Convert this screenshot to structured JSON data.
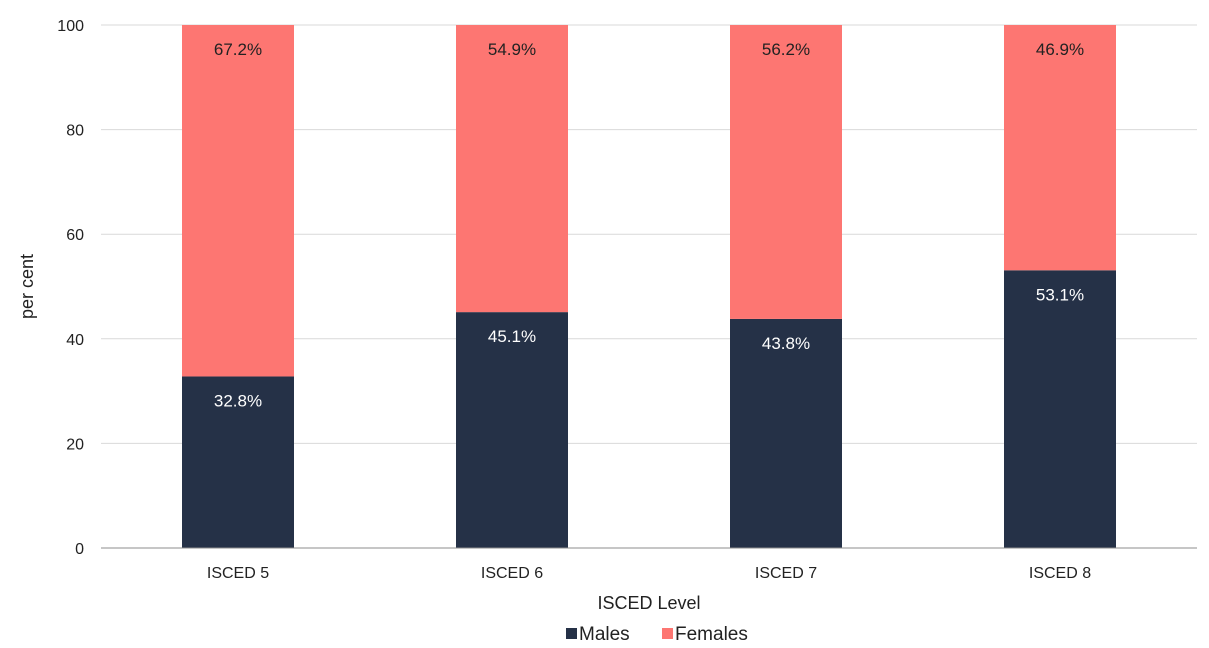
{
  "chart_data": {
    "type": "bar",
    "stacked": true,
    "categories": [
      "ISCED 5",
      "ISCED 6",
      "ISCED 7",
      "ISCED 8"
    ],
    "series": [
      {
        "name": "Males",
        "color": "#253147",
        "values": [
          32.8,
          45.1,
          43.8,
          53.1
        ],
        "labels": [
          "32.8%",
          "45.1%",
          "43.8%",
          "53.1%"
        ],
        "label_color": "#ffffff"
      },
      {
        "name": "Females",
        "color": "#fd7672",
        "values": [
          67.2,
          54.9,
          56.2,
          46.9
        ],
        "labels": [
          "67.2%",
          "54.9%",
          "56.2%",
          "46.9%"
        ],
        "label_color": "#222222"
      }
    ],
    "xlabel": "ISCED Level",
    "ylabel": "per cent",
    "ylim": [
      0,
      100
    ],
    "yticks": [
      0,
      20,
      40,
      60,
      80,
      100
    ],
    "grid": "horizontal",
    "legend_position": "bottom-center"
  }
}
